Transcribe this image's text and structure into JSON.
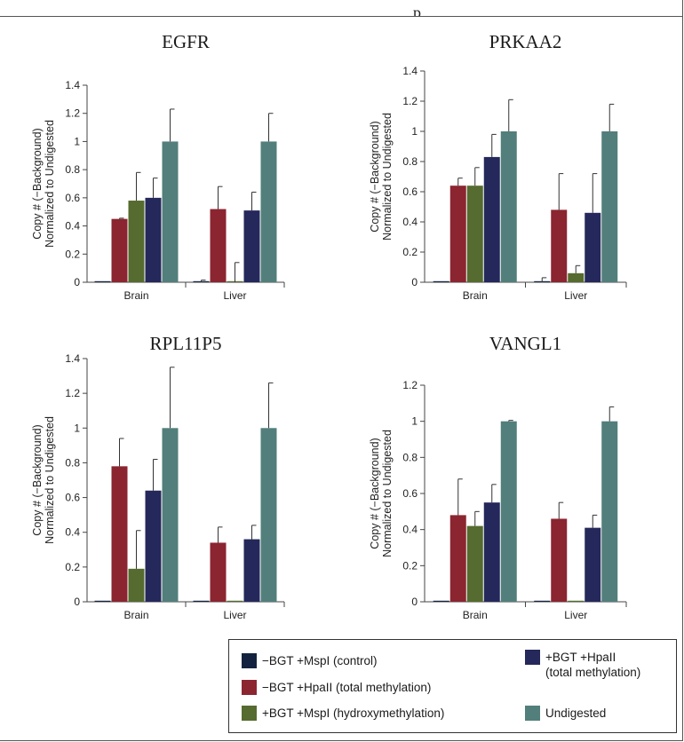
{
  "figure": {
    "top_text": "p"
  },
  "colors": {
    "control": "#13233f",
    "hpaII_total": "#8b2530",
    "hydroxy": "#556b2f",
    "bgt_hpaII": "#25285a",
    "undigested": "#527f7b"
  },
  "legend": {
    "items": [
      {
        "key": "control",
        "label": "−BGT +MspI (control)"
      },
      {
        "key": "hpaII_total",
        "label": "−BGT +HpaII (total methylation)"
      },
      {
        "key": "hydroxy",
        "label": "+BGT +MspI (hydroxymethylation)"
      },
      {
        "key": "bgt_hpaII",
        "label": "+BGT +HpaII\n(total methylation)"
      },
      {
        "key": "undigested",
        "label": "Undigested"
      }
    ]
  },
  "chart_data": [
    {
      "type": "bar",
      "title": "EGFR",
      "ylabel": [
        "Copy # (−Background)",
        "Normalized to Undigested"
      ],
      "categories": [
        "Brain",
        "Liver"
      ],
      "ylim": [
        0,
        1.4
      ],
      "yticks": [
        0,
        0.2,
        0.4,
        0.6,
        0.8,
        1,
        1.2,
        1.4
      ],
      "ytick_labels": [
        "0",
        "0.2",
        "0.4",
        "0.6",
        "0.8",
        "1",
        "1.2",
        "1.4"
      ],
      "series": [
        {
          "key": "control",
          "values": [
            0.0,
            0.0
          ],
          "errors": [
            0,
            0.015
          ]
        },
        {
          "key": "hpaII_total",
          "values": [
            0.45,
            0.52
          ],
          "errors": [
            0.005,
            0.16
          ]
        },
        {
          "key": "hydroxy",
          "values": [
            0.58,
            0.0
          ],
          "errors": [
            0.2,
            0.14
          ]
        },
        {
          "key": "bgt_hpaII",
          "values": [
            0.6,
            0.51
          ],
          "errors": [
            0.14,
            0.13
          ]
        },
        {
          "key": "undigested",
          "values": [
            1.0,
            1.0
          ],
          "errors": [
            0.23,
            0.2
          ]
        }
      ]
    },
    {
      "type": "bar",
      "title": "PRKAA2",
      "ylabel": [
        "Copy # (−Background)",
        "Normalized to Undigested"
      ],
      "categories": [
        "Brain",
        "Liver"
      ],
      "ylim": [
        0,
        1.4
      ],
      "yticks": [
        0,
        0.2,
        0.4,
        0.6,
        0.8,
        1,
        1.2,
        1.4
      ],
      "ytick_labels": [
        "0",
        "0.2",
        "0.4",
        "0.6",
        "0.8",
        "1",
        "1.2",
        "1.4"
      ],
      "series": [
        {
          "key": "control",
          "values": [
            0.0,
            0.0
          ],
          "errors": [
            0,
            0.03
          ]
        },
        {
          "key": "hpaII_total",
          "values": [
            0.64,
            0.48
          ],
          "errors": [
            0.05,
            0.24
          ]
        },
        {
          "key": "hydroxy",
          "values": [
            0.64,
            0.06
          ],
          "errors": [
            0.12,
            0.05
          ]
        },
        {
          "key": "bgt_hpaII",
          "values": [
            0.83,
            0.46
          ],
          "errors": [
            0.15,
            0.26
          ]
        },
        {
          "key": "undigested",
          "values": [
            1.0,
            1.0
          ],
          "errors": [
            0.21,
            0.18
          ]
        }
      ]
    },
    {
      "type": "bar",
      "title": "RPL11P5",
      "ylabel": [
        "Copy # (−Background)",
        "Normalized to Undigested"
      ],
      "categories": [
        "Brain",
        "Liver"
      ],
      "ylim": [
        0,
        1.4
      ],
      "yticks": [
        0,
        0.2,
        0.4,
        0.6,
        0.8,
        1,
        1.2,
        1.4
      ],
      "ytick_labels": [
        "0",
        "0.2",
        "0.4",
        "0.6",
        "0.8",
        "1",
        "1.2",
        "1.4"
      ],
      "series": [
        {
          "key": "control",
          "values": [
            0.0,
            0.0
          ],
          "errors": [
            0,
            0
          ]
        },
        {
          "key": "hpaII_total",
          "values": [
            0.78,
            0.34
          ],
          "errors": [
            0.16,
            0.09
          ]
        },
        {
          "key": "hydroxy",
          "values": [
            0.19,
            0.0
          ],
          "errors": [
            0.22,
            0
          ]
        },
        {
          "key": "bgt_hpaII",
          "values": [
            0.64,
            0.36
          ],
          "errors": [
            0.18,
            0.08
          ]
        },
        {
          "key": "undigested",
          "values": [
            1.0,
            1.0
          ],
          "errors": [
            0.35,
            0.26
          ]
        }
      ]
    },
    {
      "type": "bar",
      "title": "VANGL1",
      "ylabel": [
        "Copy # (−Background)",
        "Normalized to Undigested"
      ],
      "categories": [
        "Brain",
        "Liver"
      ],
      "ylim": [
        0,
        1.2
      ],
      "yticks": [
        0,
        0.2,
        0.4,
        0.6,
        0.8,
        1,
        1.2
      ],
      "ytick_labels": [
        "0",
        "0.2",
        "0.4",
        "0.6",
        "0.8",
        "1",
        "1.2"
      ],
      "series": [
        {
          "key": "control",
          "values": [
            0.0,
            0.0
          ],
          "errors": [
            0,
            0
          ]
        },
        {
          "key": "hpaII_total",
          "values": [
            0.48,
            0.46
          ],
          "errors": [
            0.2,
            0.09
          ]
        },
        {
          "key": "hydroxy",
          "values": [
            0.42,
            0.0
          ],
          "errors": [
            0.08,
            0
          ]
        },
        {
          "key": "bgt_hpaII",
          "values": [
            0.55,
            0.41
          ],
          "errors": [
            0.1,
            0.07
          ]
        },
        {
          "key": "undigested",
          "values": [
            1.0,
            1.0
          ],
          "errors": [
            0.005,
            0.08
          ]
        }
      ]
    }
  ]
}
